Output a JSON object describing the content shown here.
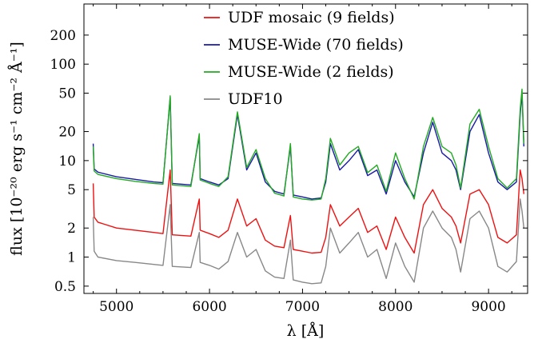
{
  "chart_data": {
    "type": "line",
    "xlabel": "λ [Å]",
    "ylabel": "flux [10⁻²⁰ erg s⁻¹ cm⁻² Å⁻¹]",
    "x_range": [
      4650,
      9420
    ],
    "ylim": [
      0.42,
      420
    ],
    "y_scale": "log",
    "grid": false,
    "legend_position": "top-center",
    "x_ticks": [
      5000,
      6000,
      7000,
      8000,
      9000
    ],
    "x_tick_labels": [
      "5000",
      "6000",
      "7000",
      "8000",
      "9000"
    ],
    "y_ticks": [
      0.5,
      1,
      2,
      5,
      10,
      20,
      50,
      100,
      200
    ],
    "y_tick_labels": [
      "0.5",
      "1",
      "2",
      "5",
      "10",
      "20",
      "50",
      "100",
      "200"
    ],
    "series": [
      {
        "name": "MUSE-Wide (70 fields)",
        "color": "#1a1aa8",
        "x": [
          4750,
          4760,
          4800,
          5000,
          5200,
          5400,
          5500,
          5577,
          5600,
          5800,
          5890,
          5900,
          6000,
          6100,
          6200,
          6300,
          6400,
          6500,
          6600,
          6700,
          6800,
          6870,
          6900,
          7000,
          7100,
          7200,
          7250,
          7300,
          7400,
          7500,
          7600,
          7700,
          7800,
          7900,
          8000,
          8100,
          8200,
          8300,
          8400,
          8500,
          8600,
          8650,
          8700,
          8800,
          8900,
          9000,
          9100,
          9200,
          9300,
          9340,
          9360,
          9380
        ],
        "y": [
          15,
          8.2,
          7.6,
          6.8,
          6.4,
          6.0,
          5.9,
          45,
          5.8,
          5.6,
          18,
          6.5,
          6.0,
          5.6,
          6.5,
          30,
          8.0,
          12,
          6.0,
          4.8,
          4.5,
          14,
          4.4,
          4.2,
          4.0,
          4.1,
          6.0,
          15,
          8.0,
          10,
          13,
          7.0,
          8.0,
          4.5,
          10,
          6.0,
          4.2,
          12,
          25,
          12,
          10,
          8.0,
          5.0,
          20,
          30,
          12,
          6.0,
          5.0,
          6.0,
          30,
          50,
          14
        ]
      },
      {
        "name": "MUSE-Wide (2 fields)",
        "color": "#22aa22",
        "x": [
          4750,
          4760,
          4800,
          5000,
          5200,
          5400,
          5500,
          5577,
          5600,
          5800,
          5890,
          5900,
          6000,
          6100,
          6200,
          6300,
          6400,
          6500,
          6600,
          6700,
          6800,
          6870,
          6900,
          7000,
          7100,
          7200,
          7250,
          7300,
          7400,
          7500,
          7600,
          7700,
          7800,
          7900,
          8000,
          8100,
          8200,
          8300,
          8400,
          8500,
          8600,
          8650,
          8700,
          8800,
          8900,
          9000,
          9100,
          9200,
          9300,
          9340,
          9360,
          9380
        ],
        "y": [
          14,
          7.8,
          7.2,
          6.5,
          6.1,
          5.8,
          5.7,
          47,
          5.6,
          5.4,
          19,
          6.3,
          5.8,
          5.4,
          6.8,
          32,
          8.5,
          13,
          6.5,
          4.6,
          4.3,
          15,
          4.2,
          4.0,
          3.9,
          4.0,
          6.5,
          17,
          9.0,
          12,
          14,
          7.5,
          9.0,
          4.8,
          12,
          6.5,
          4.0,
          14,
          28,
          14,
          12,
          9.0,
          5.2,
          24,
          34,
          14,
          6.5,
          5.2,
          6.5,
          34,
          55,
          15
        ]
      },
      {
        "name": "UDF mosaic (9 fields)",
        "color": "#ee1111",
        "x": [
          4750,
          4760,
          4800,
          5000,
          5200,
          5400,
          5500,
          5577,
          5600,
          5800,
          5890,
          5900,
          6000,
          6100,
          6200,
          6300,
          6400,
          6500,
          6600,
          6700,
          6800,
          6870,
          6900,
          7000,
          7100,
          7200,
          7250,
          7300,
          7400,
          7500,
          7600,
          7700,
          7800,
          7900,
          8000,
          8100,
          8200,
          8300,
          8400,
          8500,
          8600,
          8650,
          8700,
          8800,
          8900,
          9000,
          9100,
          9200,
          9300,
          9340,
          9360,
          9380
        ],
        "y": [
          5.8,
          2.6,
          2.3,
          2.0,
          1.9,
          1.8,
          1.75,
          8.0,
          1.7,
          1.65,
          4.0,
          1.9,
          1.75,
          1.6,
          1.9,
          4.0,
          2.1,
          2.5,
          1.5,
          1.3,
          1.25,
          2.7,
          1.2,
          1.15,
          1.1,
          1.12,
          1.6,
          3.5,
          2.1,
          2.6,
          3.2,
          1.8,
          2.1,
          1.2,
          2.6,
          1.6,
          1.1,
          3.5,
          5.0,
          3.2,
          2.6,
          2.1,
          1.4,
          4.5,
          5.0,
          3.5,
          1.6,
          1.4,
          1.7,
          8.0,
          6.5,
          4.5
        ]
      },
      {
        "name": "UDF10",
        "color": "#888888",
        "x": [
          4750,
          4760,
          4800,
          5000,
          5200,
          5400,
          5500,
          5577,
          5600,
          5800,
          5890,
          5900,
          6000,
          6100,
          6200,
          6300,
          6400,
          6500,
          6600,
          6700,
          6800,
          6870,
          6900,
          7000,
          7100,
          7200,
          7250,
          7300,
          7400,
          7500,
          7600,
          7700,
          7800,
          7900,
          8000,
          8100,
          8200,
          8300,
          8400,
          8500,
          8600,
          8650,
          8700,
          8800,
          8900,
          9000,
          9100,
          9200,
          9300,
          9340,
          9360,
          9380
        ],
        "y": [
          2.6,
          1.15,
          1.0,
          0.92,
          0.88,
          0.84,
          0.82,
          3.5,
          0.8,
          0.78,
          1.8,
          0.88,
          0.82,
          0.75,
          0.9,
          1.8,
          1.0,
          1.2,
          0.72,
          0.62,
          0.6,
          1.5,
          0.58,
          0.55,
          0.53,
          0.54,
          0.8,
          2.0,
          1.1,
          1.4,
          1.8,
          1.0,
          1.2,
          0.6,
          1.4,
          0.8,
          0.55,
          2.0,
          3.0,
          2.0,
          1.6,
          1.2,
          0.7,
          2.5,
          3.0,
          2.0,
          0.8,
          0.7,
          0.9,
          4.0,
          3.0,
          2.0
        ]
      }
    ]
  },
  "legend": {
    "items": [
      {
        "label": "UDF mosaic (9 fields)",
        "color": "#ee1111"
      },
      {
        "label": "MUSE-Wide (70 fields)",
        "color": "#1a1aa8"
      },
      {
        "label": "MUSE-Wide (2 fields)",
        "color": "#22aa22"
      },
      {
        "label": "UDF10",
        "color": "#888888"
      }
    ]
  }
}
